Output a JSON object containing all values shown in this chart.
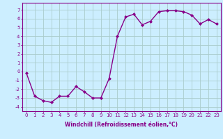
{
  "x": [
    0,
    1,
    2,
    3,
    4,
    5,
    6,
    7,
    8,
    9,
    10,
    11,
    12,
    13,
    14,
    15,
    16,
    17,
    18,
    19,
    20,
    21,
    22,
    23
  ],
  "y": [
    -0.2,
    -2.8,
    -3.3,
    -3.5,
    -2.8,
    -2.8,
    -1.7,
    -2.3,
    -3.0,
    -3.0,
    -0.8,
    4.0,
    6.2,
    6.5,
    5.3,
    5.7,
    6.8,
    6.9,
    6.9,
    6.8,
    6.4,
    5.4,
    5.9,
    5.4
  ],
  "line_color": "#880088",
  "marker": "D",
  "markersize": 2.0,
  "linewidth": 1.0,
  "xlabel": "Windchill (Refroidissement éolien,°C)",
  "xlabel_fontsize": 5.5,
  "ytick_labels": [
    "-4",
    "-3",
    "-2",
    "-1",
    "0",
    "1",
    "2",
    "3",
    "4",
    "5",
    "6",
    "7"
  ],
  "ytick_values": [
    -4,
    -3,
    -2,
    -1,
    0,
    1,
    2,
    3,
    4,
    5,
    6,
    7
  ],
  "ylim": [
    -4.5,
    7.8
  ],
  "xlim": [
    -0.5,
    23.5
  ],
  "bg_color": "#cceeff",
  "grid_color": "#aacccc",
  "tick_fontsize": 5.0,
  "xtick_labels": [
    "0",
    "1",
    "2",
    "3",
    "4",
    "5",
    "6",
    "7",
    "8",
    "9",
    "10",
    "11",
    "12",
    "13",
    "14",
    "15",
    "16",
    "17",
    "18",
    "19",
    "20",
    "21",
    "22",
    "23"
  ]
}
